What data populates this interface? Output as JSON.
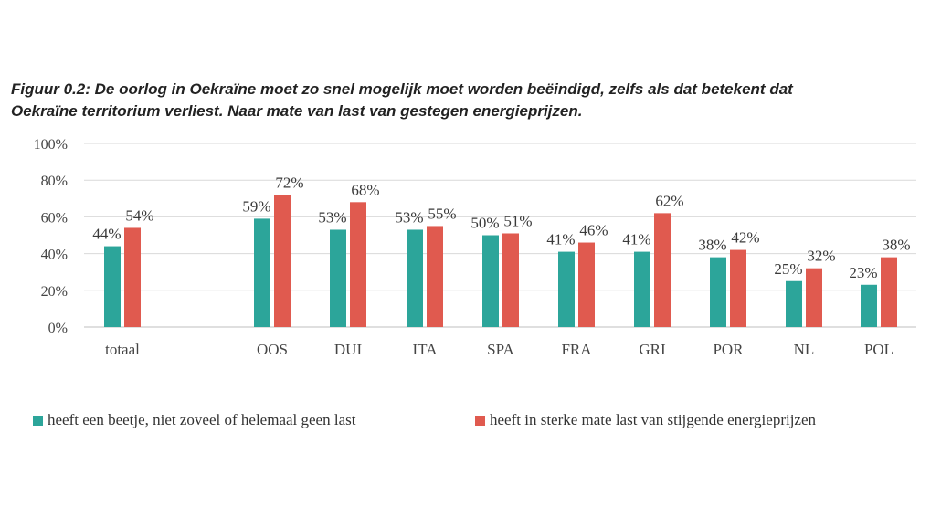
{
  "title_line1": "Figuur 0.2: De oorlog in Oekraïne moet zo snel mogelijk moet worden beëindigd, zelfs als dat betekent dat",
  "title_line2": "Oekraïne territorium verliest. Naar mate van last van gestegen energieprijzen.",
  "chart_data": {
    "type": "bar",
    "title": "Figuur 0.2: De oorlog in Oekraïne moet zo snel mogelijk moet worden beëindigd, zelfs als dat betekent dat Oekraïne territorium verliest. Naar mate van last van gestegen energieprijzen.",
    "categories": [
      "totaal",
      "OOS",
      "DUI",
      "ITA",
      "SPA",
      "FRA",
      "GRI",
      "POR",
      "NL",
      "POL"
    ],
    "series": [
      {
        "name": "heeft een beetje, niet zoveel of helemaal geen last",
        "color": "#2ca59a",
        "values": [
          44,
          59,
          53,
          53,
          50,
          41,
          41,
          38,
          25,
          23
        ],
        "labels": [
          "44%",
          "59%",
          "53%",
          "53%",
          "50%",
          "41%",
          "41%",
          "38%",
          "25%",
          "23%"
        ]
      },
      {
        "name": "heeft in sterke mate last van stijgende energieprijzen",
        "color": "#e05a4f",
        "values": [
          54,
          72,
          68,
          55,
          51,
          46,
          62,
          42,
          32,
          38
        ],
        "labels": [
          "54%",
          "72%",
          "68%",
          "55%",
          "51%",
          "46%",
          "62%",
          "42%",
          "32%",
          "38%"
        ]
      }
    ],
    "ylim": [
      0,
      100
    ],
    "yticks": [
      "0%",
      "20%",
      "40%",
      "60%",
      "80%",
      "100%"
    ],
    "grid": true,
    "legend": "bottom",
    "xlabel": "",
    "ylabel": ""
  }
}
